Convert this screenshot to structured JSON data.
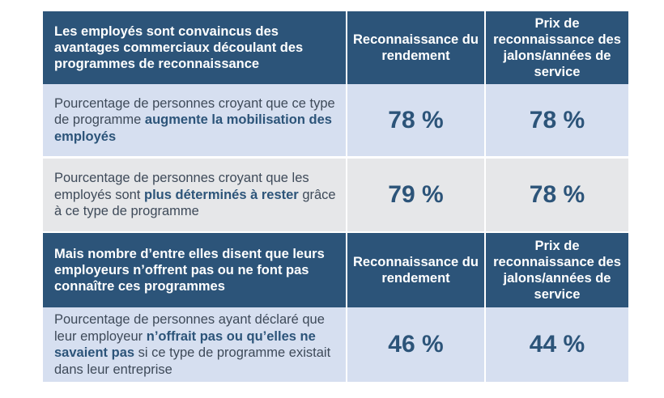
{
  "table1": {
    "header": {
      "description": "Les employés sont convaincus des avantages commerciaux découlant des programmes de reconnaissance",
      "col1": "Reconnaissance du rendement",
      "col2": "Prix de reconnaissance des jalons/années de service"
    },
    "rows": [
      {
        "text_before": "Pourcentage de personnes croyant que ce type de programme ",
        "text_emphasis": "augmente la mobilisation des employés",
        "text_after": "",
        "value1": "78 %",
        "value2": "78 %"
      },
      {
        "text_before": "Pourcentage de personnes croyant que les employés sont ",
        "text_emphasis": "plus déterminés à rester",
        "text_after": " grâce à ce type de programme",
        "value1": "79 %",
        "value2": "78 %"
      }
    ]
  },
  "table2": {
    "header": {
      "description": "Mais nombre d’entre elles disent que leurs employeurs n’offrent pas ou ne font pas connaître ces programmes",
      "col1": "Reconnaissance du rendement",
      "col2": "Prix de reconnaissance des jalons/années de service"
    },
    "rows": [
      {
        "text_before": "Pourcentage de personnes ayant déclaré que leur employeur ",
        "text_emphasis": "n’offrait pas ou qu’elles ne savaient pas",
        "text_after": " si ce type de programme existait dans leur entreprise",
        "value1": "46 %",
        "value2": "44 %"
      }
    ]
  }
}
